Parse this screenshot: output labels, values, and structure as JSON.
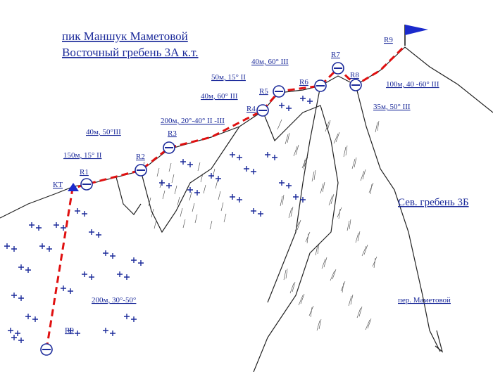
{
  "header": {
    "title": "пик Маншук Маметовой",
    "subtitle": "Восточный гребень 3А к.т."
  },
  "nodes": [
    {
      "label": "R0"
    },
    {
      "label": "КТ"
    },
    {
      "label": "R1"
    },
    {
      "label": "R2"
    },
    {
      "label": "R3"
    },
    {
      "label": "R4"
    },
    {
      "label": "R5"
    },
    {
      "label": "R6"
    },
    {
      "label": "R7"
    },
    {
      "label": "R8"
    },
    {
      "label": "R9"
    }
  ],
  "segments": [
    {
      "label": "200м, 30°-50°"
    },
    {
      "label": "150м, 15° II"
    },
    {
      "label": "40м, 50°III"
    },
    {
      "label": "200м, 20°-40° II -III"
    },
    {
      "label": "40м, 60° III"
    },
    {
      "label": "50м, 15° II"
    },
    {
      "label": "40м, 60° III"
    },
    {
      "label": "100м, 40 -60° III"
    },
    {
      "label": "35м, 50° III"
    }
  ],
  "features": [
    {
      "label": "Сев. гребень 3Б"
    },
    {
      "label": "пер. Маметовой"
    }
  ]
}
